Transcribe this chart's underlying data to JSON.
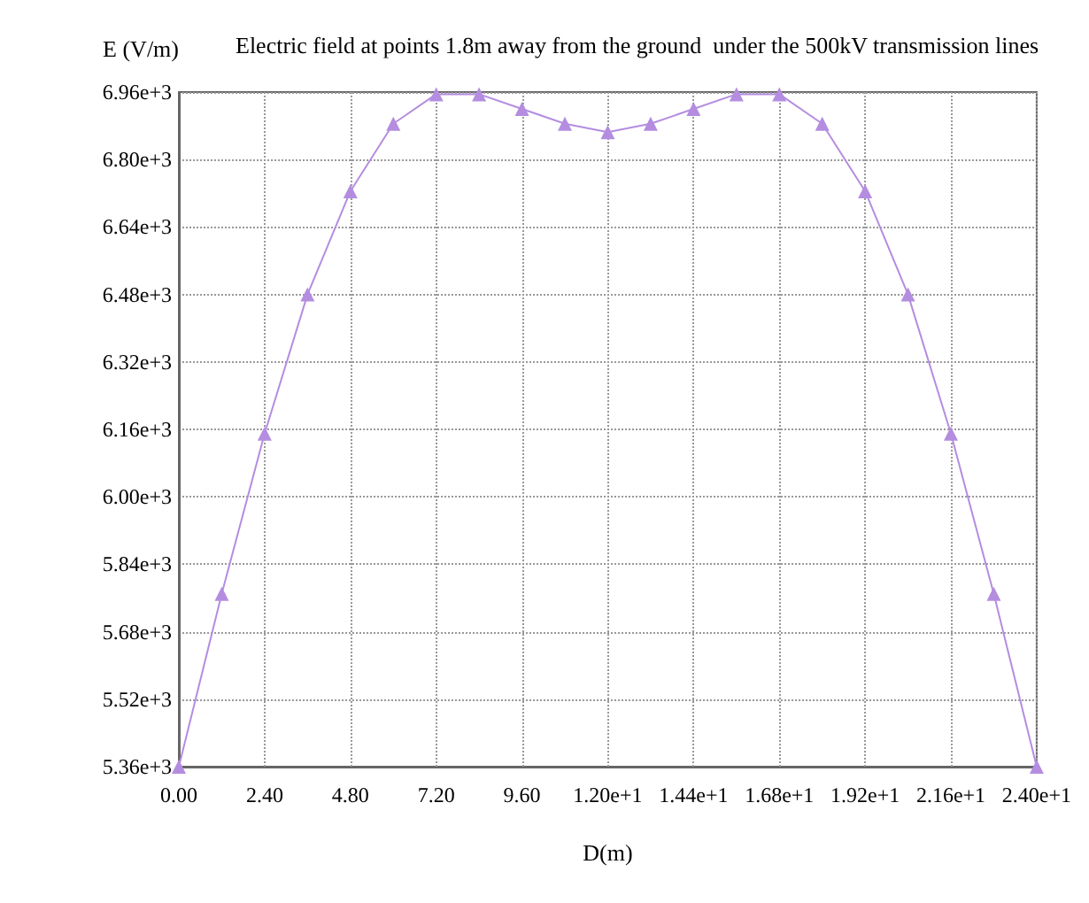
{
  "chart_data": {
    "type": "line",
    "title": "Electric field at points 1.8m away from the ground  under the 500kV transmission lines",
    "xlabel": "D(m)",
    "ylabel": "E (V/m)",
    "x": [
      0,
      1.2,
      2.4,
      3.6,
      4.8,
      6,
      7.2,
      8.4,
      9.6,
      10.8,
      12,
      13.2,
      14.4,
      15.6,
      16.8,
      18,
      19.2,
      20.4,
      21.6,
      22.8,
      24
    ],
    "series": [
      {
        "color": "#b48de0",
        "values": [
          5360,
          5770,
          6150,
          6480,
          6725,
          6885,
          6955,
          6955,
          6920,
          6885,
          6865,
          6885,
          6920,
          6955,
          6955,
          6885,
          6725,
          6480,
          6150,
          5770,
          5360
        ]
      }
    ],
    "xlim": [
      0,
      24
    ],
    "xticks": [
      {
        "value": 0,
        "label": "0.00"
      },
      {
        "value": 2.4,
        "label": "2.40"
      },
      {
        "value": 4.8,
        "label": "4.80"
      },
      {
        "value": 7.2,
        "label": "7.20"
      },
      {
        "value": 9.6,
        "label": "9.60"
      },
      {
        "value": 12,
        "label": "1.20e+1"
      },
      {
        "value": 14.4,
        "label": "1.44e+1"
      },
      {
        "value": 16.8,
        "label": "1.68e+1"
      },
      {
        "value": 19.2,
        "label": "1.92e+1"
      },
      {
        "value": 21.6,
        "label": "2.16e+1"
      },
      {
        "value": 24,
        "label": "2.40e+1"
      }
    ],
    "ylim": [
      5360,
      6960
    ],
    "yticks": [
      {
        "value": 5360,
        "label": "5.36e+3"
      },
      {
        "value": 5520,
        "label": "5.52e+3"
      },
      {
        "value": 5680,
        "label": "5.68e+3"
      },
      {
        "value": 5840,
        "label": "5.84e+3"
      },
      {
        "value": 6000,
        "label": "6.00e+3"
      },
      {
        "value": 6160,
        "label": "6.16e+3"
      },
      {
        "value": 6320,
        "label": "6.32e+3"
      },
      {
        "value": 6480,
        "label": "6.48e+3"
      },
      {
        "value": 6640,
        "label": "6.64e+3"
      },
      {
        "value": 6800,
        "label": "6.80e+3"
      },
      {
        "value": 6960,
        "label": "6.96e+3"
      }
    ],
    "grid": true,
    "marker": "triangle",
    "line_style": "solid"
  }
}
